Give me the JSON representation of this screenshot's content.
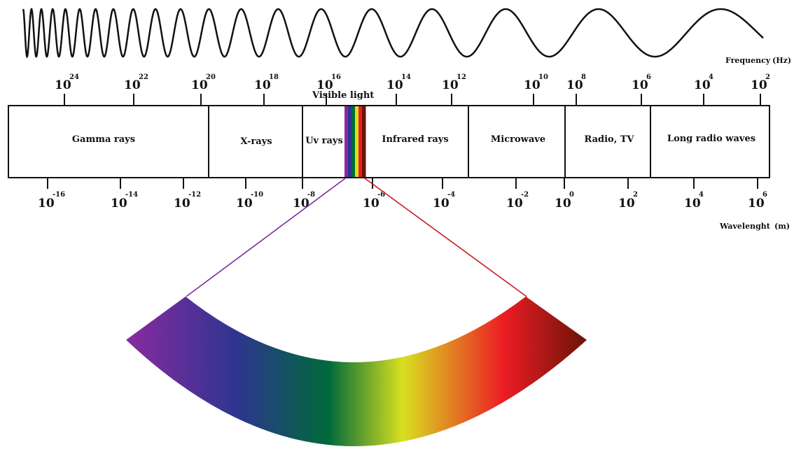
{
  "frequency_axis": {
    "title": "Frequency",
    "unit": "(Hz)",
    "ticks": [
      {
        "base": "10",
        "exp": "24"
      },
      {
        "base": "10",
        "exp": "22"
      },
      {
        "base": "10",
        "exp": "20"
      },
      {
        "base": "10",
        "exp": "18"
      },
      {
        "base": "10",
        "exp": "16"
      },
      {
        "base": "10",
        "exp": "14"
      },
      {
        "base": "10",
        "exp": "12"
      },
      {
        "base": "10",
        "exp": "10"
      },
      {
        "base": "10",
        "exp": "8"
      },
      {
        "base": "10",
        "exp": "6"
      },
      {
        "base": "10",
        "exp": "4"
      },
      {
        "base": "10",
        "exp": "2"
      }
    ]
  },
  "wavelength_axis": {
    "title": "Wavelenght",
    "unit": "(m)",
    "ticks": [
      {
        "base": "10",
        "exp": "-16"
      },
      {
        "base": "10",
        "exp": "-14"
      },
      {
        "base": "10",
        "exp": "-12"
      },
      {
        "base": "10",
        "exp": "-10"
      },
      {
        "base": "10",
        "exp": "-8"
      },
      {
        "base": "10",
        "exp": "-6"
      },
      {
        "base": "10",
        "exp": "-4"
      },
      {
        "base": "10",
        "exp": "-2"
      },
      {
        "base": "10",
        "exp": "0"
      },
      {
        "base": "10",
        "exp": "2"
      },
      {
        "base": "10",
        "exp": "4"
      },
      {
        "base": "10",
        "exp": "6"
      }
    ]
  },
  "bands": [
    {
      "label": "Gamma rays"
    },
    {
      "label": "X-rays"
    },
    {
      "label": "Uv rays"
    },
    {
      "label": "Infrared rays"
    },
    {
      "label": "Microwave"
    },
    {
      "label": "Radio, TV"
    },
    {
      "label": "Long radio waves"
    }
  ],
  "visible_label": "Visible light",
  "spectrum_colors": [
    "#8a2aa0",
    "#2e3590",
    "#006a3a",
    "#d8e020",
    "#ec1c24",
    "#6a1408"
  ]
}
